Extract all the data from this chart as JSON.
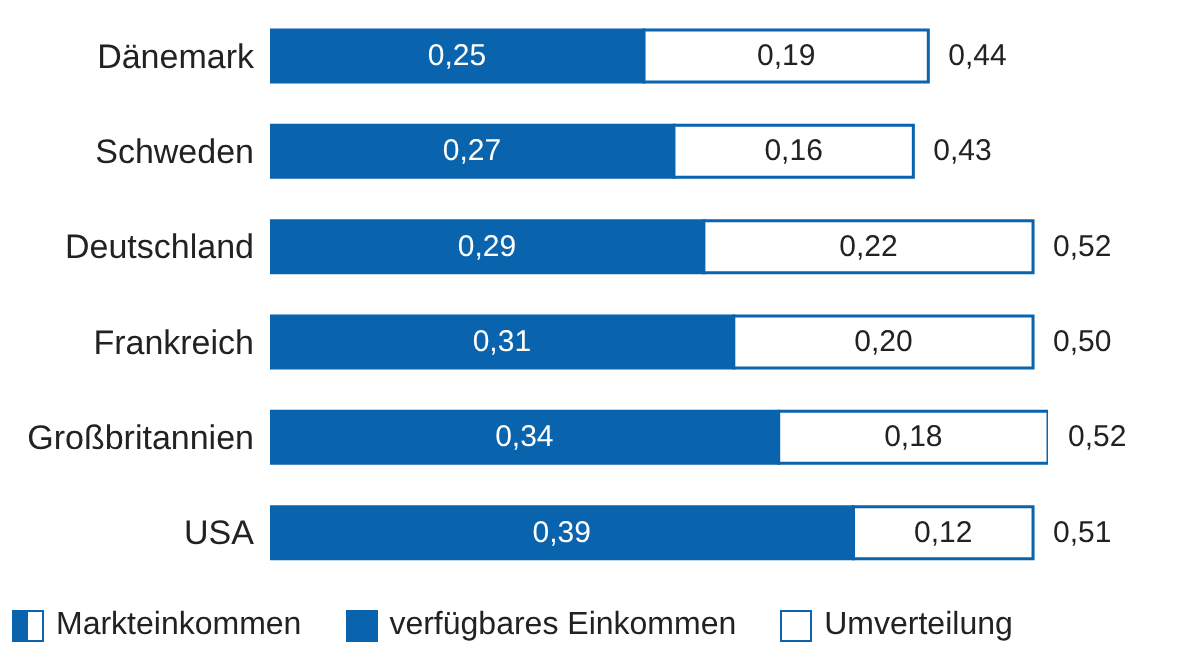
{
  "chart_data": {
    "type": "bar",
    "orientation": "horizontal",
    "stacked": true,
    "categories": [
      "Dänemark",
      "Schweden",
      "Deutschland",
      "Frankreich",
      "Großbritannien",
      "USA"
    ],
    "series": [
      {
        "name": "verfügbares Einkommen",
        "color": "#0a64ad",
        "values": [
          0.25,
          0.27,
          0.29,
          0.31,
          0.34,
          0.39
        ],
        "value_labels": [
          "0,25",
          "0,27",
          "0,29",
          "0,31",
          "0,34",
          "0,39"
        ]
      },
      {
        "name": "Umverteilung",
        "color": "#ffffff",
        "values": [
          0.19,
          0.16,
          0.22,
          0.2,
          0.18,
          0.12
        ],
        "value_labels": [
          "0,19",
          "0,16",
          "0,22",
          "0,20",
          "0,18",
          "0,12"
        ]
      }
    ],
    "totals": [
      "0,44",
      "0,43",
      "0,52",
      "0,50",
      "0,52",
      "0,51"
    ],
    "annotations": [
      "Markteinkommen"
    ],
    "legend": "bottom"
  }
}
